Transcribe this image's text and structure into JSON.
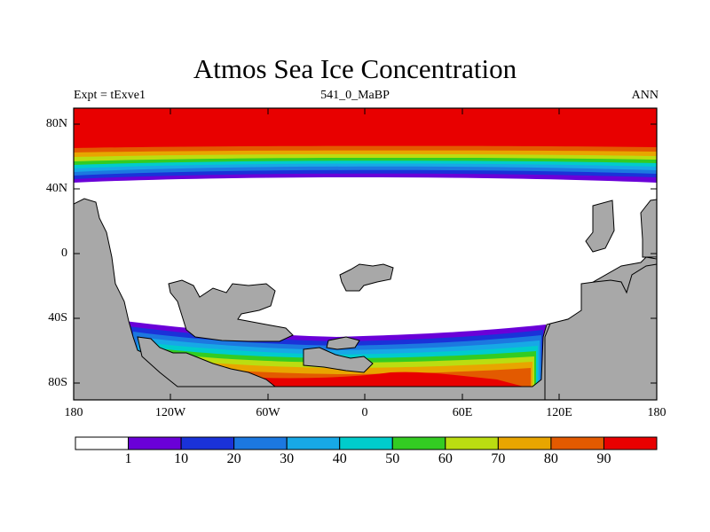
{
  "title": "Atmos Sea Ice Concentration",
  "subtitle_left": "Expt = tExve1",
  "subtitle_center": "541_0_MaBP",
  "subtitle_right": "ANN",
  "lat_ticks": [
    "80N",
    "40N",
    "0",
    "40S",
    "80S"
  ],
  "lon_ticks": [
    "180",
    "120W",
    "60W",
    "0",
    "60E",
    "120E",
    "180"
  ],
  "legend": {
    "labels": [
      "1",
      "10",
      "20",
      "30",
      "40",
      "50",
      "60",
      "70",
      "80",
      "90"
    ],
    "colors": [
      "#ffffff",
      "#6a00d8",
      "#1a32d9",
      "#1c78e0",
      "#17a8e6",
      "#00cccc",
      "#33cc22",
      "#bbdd11",
      "#e8a500",
      "#e35a00",
      "#e80000"
    ]
  },
  "colors": {
    "land": "#a8a8a8",
    "no_ice": "#ffffff"
  }
}
